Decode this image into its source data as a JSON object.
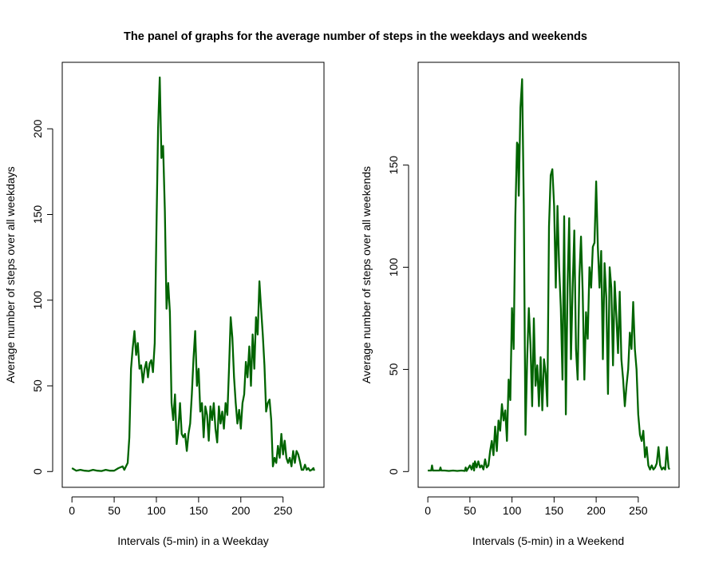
{
  "title": "The panel of graphs for the average number of steps in the weekdays and weekends",
  "colors": {
    "line": "#006400",
    "axis": "#000000",
    "background": "#ffffff"
  },
  "chart_data": [
    {
      "type": "line",
      "title": "",
      "xlabel": "Intervals (5-min) in a Weekday",
      "ylabel": "Average number of steps over all weekdays",
      "xlim": [
        -11.5,
        298.5
      ],
      "ylim": [
        -9.2,
        238.8
      ],
      "x_ticks": [
        0,
        50,
        100,
        150,
        200,
        250
      ],
      "x_tick_labels": [
        "0",
        "50",
        "100",
        "150",
        "200",
        "250"
      ],
      "y_ticks": [
        0,
        50,
        100,
        150,
        200
      ],
      "y_tick_labels": [
        "0",
        "50",
        "100",
        "150",
        "200"
      ],
      "grid": false,
      "series": [
        {
          "name": "",
          "x": [
            0,
            5,
            10,
            15,
            20,
            25,
            30,
            35,
            40,
            45,
            50,
            55,
            60,
            62,
            64,
            66,
            68,
            70,
            72,
            74,
            76,
            78,
            80,
            82,
            84,
            86,
            88,
            90,
            92,
            94,
            96,
            98,
            100,
            102,
            104,
            106,
            108,
            110,
            112,
            114,
            116,
            118,
            120,
            122,
            124,
            126,
            128,
            130,
            132,
            134,
            136,
            138,
            140,
            142,
            144,
            146,
            148,
            150,
            152,
            154,
            156,
            158,
            160,
            162,
            164,
            166,
            168,
            170,
            172,
            174,
            176,
            178,
            180,
            182,
            184,
            186,
            188,
            190,
            192,
            194,
            196,
            198,
            200,
            202,
            204,
            206,
            208,
            210,
            212,
            214,
            216,
            218,
            220,
            222,
            224,
            226,
            228,
            230,
            232,
            234,
            236,
            238,
            240,
            242,
            244,
            246,
            248,
            250,
            252,
            254,
            256,
            258,
            260,
            262,
            264,
            266,
            268,
            270,
            272,
            274,
            276,
            278,
            280,
            282,
            284,
            286,
            287
          ],
          "y": [
            2,
            0.5,
            1,
            0.5,
            0.3,
            1,
            0.5,
            0.3,
            1,
            0.5,
            0.5,
            2,
            3,
            1,
            3,
            5,
            20,
            60,
            72,
            82,
            68,
            75,
            60,
            62,
            52,
            60,
            64,
            55,
            63,
            65,
            58,
            75,
            140,
            200,
            230,
            183,
            190,
            152,
            95,
            110,
            93,
            40,
            30,
            45,
            16,
            25,
            40,
            22,
            20,
            22,
            12,
            22,
            28,
            45,
            66,
            82,
            50,
            60,
            35,
            40,
            20,
            38,
            33,
            18,
            38,
            30,
            40,
            25,
            17,
            38,
            28,
            35,
            25,
            40,
            33,
            60,
            90,
            78,
            55,
            40,
            28,
            36,
            25,
            40,
            45,
            64,
            55,
            73,
            50,
            80,
            60,
            90,
            80,
            111,
            95,
            80,
            62,
            35,
            40,
            42,
            30,
            3,
            8,
            5,
            15,
            8,
            22,
            10,
            18,
            8,
            5,
            8,
            3,
            12,
            5,
            12,
            10,
            6,
            1,
            1,
            4,
            1,
            2,
            0.5,
            1,
            2,
            0.5
          ]
        }
      ]
    },
    {
      "type": "line",
      "title": "",
      "xlabel": "Intervals (5-min) in a Weekend",
      "ylabel": "Average number of steps over all weekends",
      "xlim": [
        -11.5,
        298.5
      ],
      "ylim": [
        -7.7,
        200.3
      ],
      "x_ticks": [
        0,
        50,
        100,
        150,
        200,
        250
      ],
      "x_tick_labels": [
        "0",
        "50",
        "100",
        "150",
        "200",
        "250"
      ],
      "y_ticks": [
        0,
        50,
        100,
        150
      ],
      "y_tick_labels": [
        "0",
        "50",
        "100",
        "150"
      ],
      "grid": false,
      "series": [
        {
          "name": "",
          "x": [
            0,
            4,
            5,
            6,
            10,
            14,
            15,
            16,
            20,
            25,
            30,
            35,
            40,
            44,
            45,
            46,
            50,
            52,
            54,
            55,
            56,
            58,
            60,
            62,
            64,
            66,
            68,
            70,
            72,
            74,
            76,
            78,
            80,
            82,
            84,
            86,
            88,
            90,
            92,
            94,
            96,
            98,
            100,
            102,
            104,
            106,
            107,
            108,
            110,
            112,
            114,
            116,
            118,
            120,
            122,
            124,
            126,
            128,
            130,
            132,
            134,
            136,
            138,
            140,
            142,
            144,
            146,
            148,
            150,
            152,
            154,
            156,
            158,
            160,
            162,
            164,
            166,
            168,
            170,
            172,
            174,
            176,
            178,
            180,
            182,
            184,
            186,
            188,
            190,
            192,
            194,
            196,
            198,
            200,
            202,
            204,
            206,
            208,
            210,
            212,
            214,
            216,
            218,
            220,
            222,
            224,
            226,
            228,
            230,
            232,
            234,
            236,
            238,
            240,
            242,
            244,
            246,
            248,
            250,
            252,
            254,
            256,
            258,
            260,
            262,
            264,
            266,
            268,
            270,
            272,
            274,
            276,
            278,
            280,
            282,
            284,
            286,
            287
          ],
          "y": [
            0.5,
            0.5,
            3,
            0.5,
            0.5,
            0.5,
            2,
            0.5,
            0.5,
            0.3,
            0.5,
            0.3,
            0.5,
            0.3,
            2,
            0.3,
            3,
            1,
            4,
            0.5,
            5,
            2,
            5,
            2,
            3,
            1,
            6,
            2,
            3,
            10,
            15,
            8,
            22,
            10,
            25,
            20,
            33,
            25,
            30,
            15,
            45,
            35,
            80,
            60,
            125,
            161,
            160,
            135,
            178,
            192,
            130,
            18,
            55,
            80,
            62,
            32,
            75,
            42,
            52,
            32,
            56,
            30,
            55,
            48,
            32,
            120,
            145,
            148,
            130,
            90,
            130,
            100,
            80,
            45,
            125,
            28,
            90,
            124,
            55,
            90,
            118,
            60,
            45,
            95,
            115,
            88,
            45,
            78,
            65,
            100,
            90,
            110,
            112,
            142,
            110,
            90,
            108,
            55,
            102,
            85,
            38,
            100,
            90,
            52,
            93,
            76,
            58,
            88,
            55,
            45,
            32,
            42,
            50,
            68,
            60,
            83,
            60,
            50,
            28,
            18,
            15,
            20,
            7,
            12,
            3,
            1,
            3,
            1,
            2,
            4,
            12,
            3,
            1,
            2,
            1,
            12,
            2,
            1
          ]
        }
      ]
    }
  ]
}
